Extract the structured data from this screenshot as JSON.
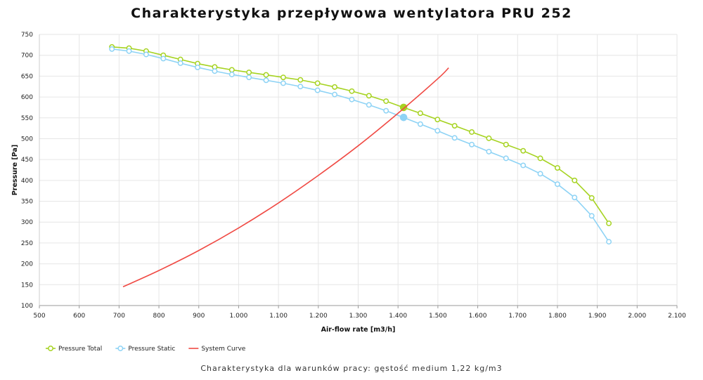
{
  "chart_data": {
    "type": "line",
    "title": "Charakterystyka przepływowa wentylatora PRU 252",
    "subtitle": "Charakterystyka dla warunków pracy: gęstość medium 1,22 kg/m3",
    "xlabel": "Air-flow rate [m3/h]",
    "ylabel": "Pressure [Pa]",
    "xlim": [
      500,
      2100
    ],
    "ylim": [
      100,
      750
    ],
    "x_ticks": [
      500,
      600,
      700,
      800,
      900,
      1000,
      1100,
      1200,
      1300,
      1400,
      1500,
      1600,
      1700,
      1800,
      1900,
      2000,
      2100
    ],
    "x_tick_labels": [
      "500",
      "600",
      "700",
      "800",
      "900",
      "1.000",
      "1.100",
      "1.200",
      "1.300",
      "1.400",
      "1.500",
      "1.600",
      "1.700",
      "1.800",
      "1.900",
      "2.000",
      "2.100"
    ],
    "y_ticks": [
      100,
      150,
      200,
      250,
      300,
      350,
      400,
      450,
      500,
      550,
      600,
      650,
      700,
      750
    ],
    "grid": true,
    "legend": "bottom-left",
    "series": [
      {
        "name": "Pressure Total",
        "color": "#a6d321",
        "marker": "circle",
        "highlight_point": {
          "x": 1414,
          "y": 575
        },
        "points": [
          [
            682,
            720
          ],
          [
            725,
            717
          ],
          [
            768,
            710
          ],
          [
            811,
            700
          ],
          [
            854,
            690
          ],
          [
            897,
            680
          ],
          [
            940,
            672
          ],
          [
            983,
            665
          ],
          [
            1026,
            659
          ],
          [
            1069,
            653
          ],
          [
            1112,
            647
          ],
          [
            1155,
            641
          ],
          [
            1198,
            633
          ],
          [
            1241,
            624
          ],
          [
            1284,
            614
          ],
          [
            1327,
            603
          ],
          [
            1370,
            590
          ],
          [
            1413,
            575
          ],
          [
            1456,
            561
          ],
          [
            1499,
            546
          ],
          [
            1542,
            531
          ],
          [
            1585,
            516
          ],
          [
            1628,
            501
          ],
          [
            1671,
            486
          ],
          [
            1714,
            471
          ],
          [
            1757,
            453
          ],
          [
            1800,
            430
          ],
          [
            1843,
            400
          ],
          [
            1886,
            358
          ],
          [
            1929,
            297
          ]
        ]
      },
      {
        "name": "Pressure Static",
        "color": "#8ed3f5",
        "marker": "circle",
        "highlight_point": {
          "x": 1414,
          "y": 551
        },
        "points": [
          [
            682,
            715
          ],
          [
            725,
            710
          ],
          [
            768,
            702
          ],
          [
            811,
            692
          ],
          [
            854,
            681
          ],
          [
            897,
            671
          ],
          [
            940,
            662
          ],
          [
            983,
            654
          ],
          [
            1026,
            647
          ],
          [
            1069,
            640
          ],
          [
            1112,
            633
          ],
          [
            1155,
            625
          ],
          [
            1198,
            616
          ],
          [
            1241,
            606
          ],
          [
            1284,
            594
          ],
          [
            1327,
            581
          ],
          [
            1370,
            567
          ],
          [
            1413,
            551
          ],
          [
            1456,
            535
          ],
          [
            1499,
            519
          ],
          [
            1542,
            502
          ],
          [
            1585,
            486
          ],
          [
            1628,
            469
          ],
          [
            1671,
            453
          ],
          [
            1714,
            436
          ],
          [
            1757,
            416
          ],
          [
            1800,
            391
          ],
          [
            1843,
            359
          ],
          [
            1886,
            315
          ],
          [
            1929,
            253
          ]
        ]
      },
      {
        "name": "System Curve",
        "color": "#f04a44",
        "marker": "none",
        "points": [
          [
            710,
            145
          ],
          [
            800,
            184
          ],
          [
            900,
            232
          ],
          [
            1000,
            286
          ],
          [
            1100,
            346
          ],
          [
            1200,
            412
          ],
          [
            1300,
            483
          ],
          [
            1400,
            561
          ],
          [
            1500,
            644
          ],
          [
            1527,
            670
          ]
        ]
      }
    ]
  }
}
